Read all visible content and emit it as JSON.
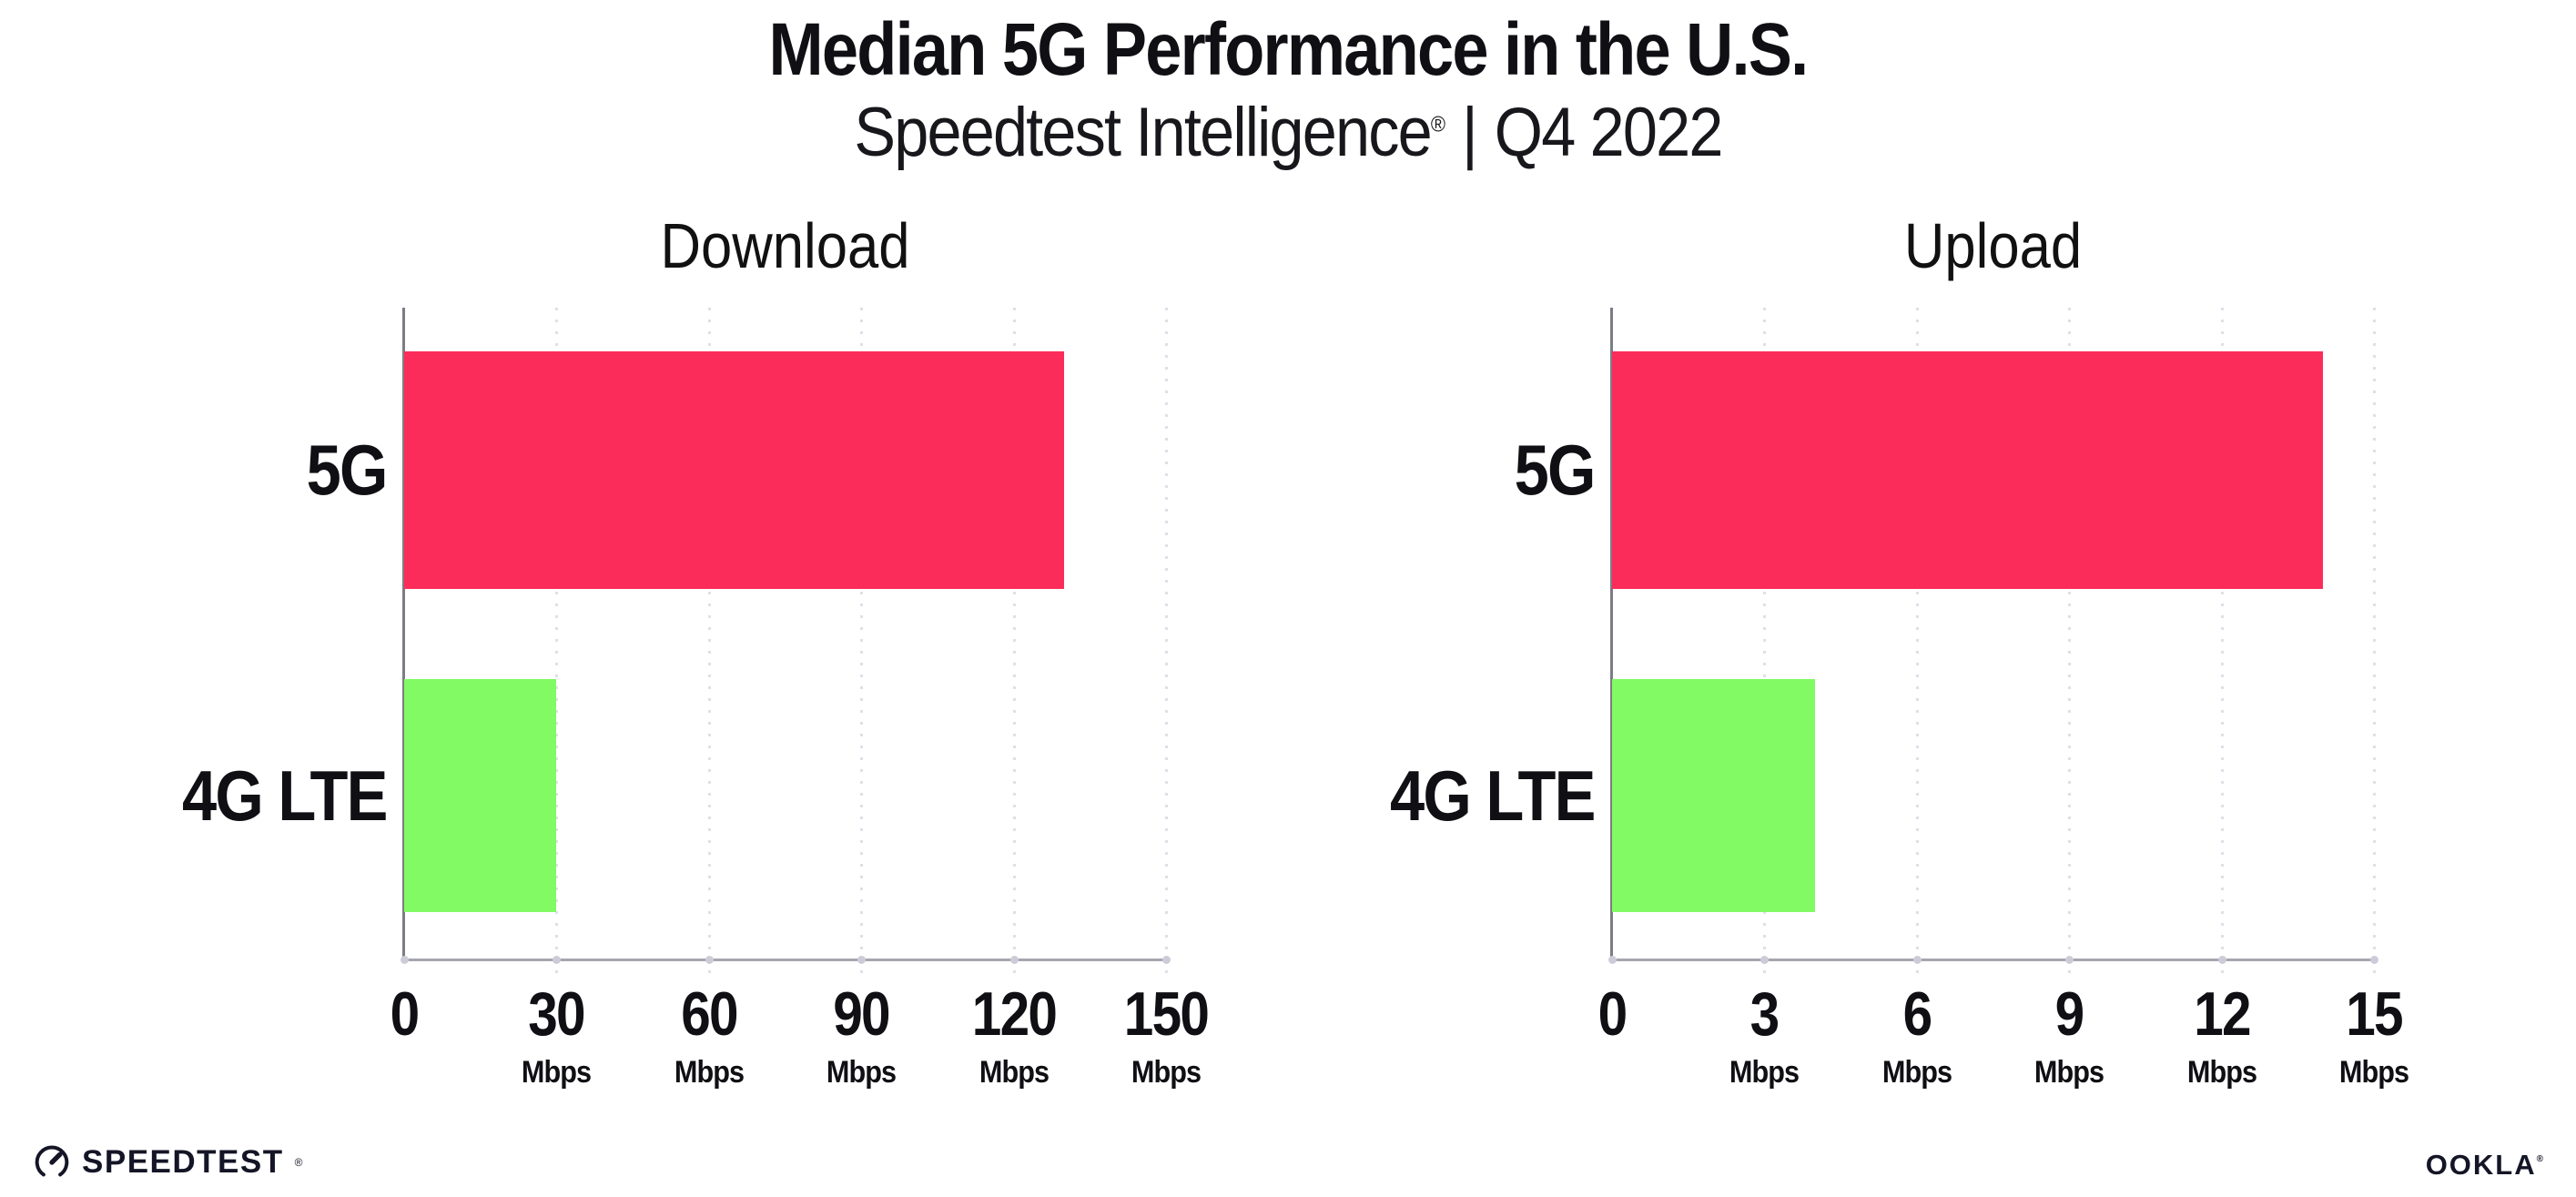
{
  "header": {
    "title": "Median 5G Performance in the U.S.",
    "subtitle": {
      "brand": "Speedtest Intelligence",
      "registered": "®",
      "separator": "|",
      "period": "Q4 2022"
    }
  },
  "chart_data": [
    {
      "type": "bar",
      "orientation": "horizontal",
      "title": "Download",
      "categories": [
        "5G",
        "4G LTE"
      ],
      "values": [
        130,
        30
      ],
      "unit": "Mbps",
      "xlim": [
        0,
        150
      ],
      "xticks": [
        0,
        30,
        60,
        90,
        120,
        150
      ],
      "tick_unit_label": "Mbps",
      "grid": "vertical-dotted",
      "legend": "none",
      "bar_colors": [
        "#FC2C5A",
        "#81FA63"
      ]
    },
    {
      "type": "bar",
      "orientation": "horizontal",
      "title": "Upload",
      "categories": [
        "5G",
        "4G LTE"
      ],
      "values": [
        14,
        4
      ],
      "unit": "Mbps",
      "xlim": [
        0,
        15
      ],
      "xticks": [
        0,
        3,
        6,
        9,
        12,
        15
      ],
      "tick_unit_label": "Mbps",
      "grid": "vertical-dotted",
      "legend": "none",
      "bar_colors": [
        "#FC2C5A",
        "#81FA63"
      ]
    }
  ],
  "footer": {
    "speedtest_logo_text": "SPEEDTEST",
    "speedtest_mark": "®",
    "ookla_logo_text": "OOKLA",
    "ookla_mark": "®"
  },
  "colors": {
    "bar_5g": "#FC2C5A",
    "bar_4g_lte": "#81FA63",
    "gridline": "#DFDFE9",
    "axis_y": "#7C7C86",
    "axis_x": "#A6A6B0",
    "text": "#0F0F14"
  }
}
